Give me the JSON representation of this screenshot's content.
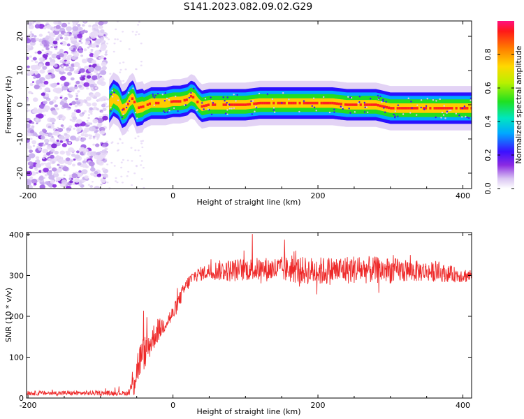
{
  "title": "S141.2023.082.09.02.G29",
  "chart_data": [
    {
      "type": "heatmap",
      "xlabel": "Height of straight line (km)",
      "ylabel": "Frequency (Hz)",
      "xlim": [
        -202,
        412
      ],
      "ylim": [
        -24.5,
        24.5
      ],
      "xticks": [
        -200,
        0,
        200,
        400
      ],
      "yticks": [
        -20,
        -10,
        0,
        10,
        20
      ],
      "colorbar": {
        "label": "Normalized spectral amplitude",
        "range": [
          0,
          1
        ],
        "ticks": [
          0.0,
          0.2,
          0.4,
          0.6,
          0.8
        ],
        "tick_labels": [
          "0.0",
          "0.2",
          "0.4",
          "0.6",
          "0.8"
        ]
      },
      "noise_region_x": [
        -202,
        -92
      ],
      "ridge": {
        "x": [
          -88,
          -82,
          -75,
          -70,
          -65,
          -60,
          -55,
          -50,
          -40,
          -30,
          -20,
          -10,
          0,
          10,
          20,
          25,
          30,
          35,
          40,
          50,
          60,
          80,
          100,
          120,
          140,
          160,
          180,
          200,
          220,
          240,
          260,
          280,
          290,
          300,
          320,
          340,
          360,
          380,
          400,
          412
        ],
        "freq": [
          0.0,
          2.0,
          1.0,
          -1.5,
          -1.0,
          1.0,
          2.0,
          -1.0,
          -0.5,
          0.5,
          0.5,
          0.5,
          1.0,
          1.0,
          1.5,
          2.5,
          2.0,
          0.5,
          -0.5,
          0.0,
          0.0,
          0.0,
          0.0,
          0.5,
          0.5,
          0.5,
          0.5,
          0.5,
          0.5,
          0.0,
          0.0,
          0.0,
          -0.5,
          -1.0,
          -1.0,
          -1.0,
          -1.0,
          -1.0,
          -1.0,
          -1.0
        ]
      },
      "grid": false
    },
    {
      "type": "line",
      "xlabel": "Height of straight line (km)",
      "ylabel": "SNR (10 * v/v)",
      "xlim": [
        -202,
        412
      ],
      "ylim": [
        0,
        405
      ],
      "xticks": [
        -200,
        0,
        200,
        400
      ],
      "yticks": [
        0,
        100,
        200,
        300,
        400
      ],
      "series_color": "#ee2a2a",
      "grid": false,
      "x": [
        -202,
        -150,
        -100,
        -60,
        -55,
        -50,
        -45,
        -40,
        -35,
        -30,
        -25,
        -20,
        -15,
        -10,
        -5,
        0,
        5,
        10,
        15,
        20,
        25,
        30,
        40,
        50,
        60,
        80,
        100,
        150,
        200,
        250,
        300,
        350,
        400,
        412
      ],
      "y_mean": [
        12,
        12,
        12,
        12,
        40,
        70,
        95,
        110,
        120,
        140,
        155,
        165,
        175,
        185,
        195,
        205,
        225,
        245,
        265,
        280,
        290,
        300,
        305,
        310,
        312,
        312,
        315,
        315,
        310,
        315,
        312,
        310,
        300,
        300
      ],
      "y_spread": [
        8,
        8,
        8,
        8,
        70,
        70,
        65,
        60,
        55,
        50,
        45,
        40,
        35,
        30,
        30,
        30,
        28,
        28,
        25,
        25,
        25,
        25,
        25,
        30,
        35,
        40,
        40,
        45,
        50,
        50,
        45,
        35,
        25,
        25
      ]
    }
  ]
}
